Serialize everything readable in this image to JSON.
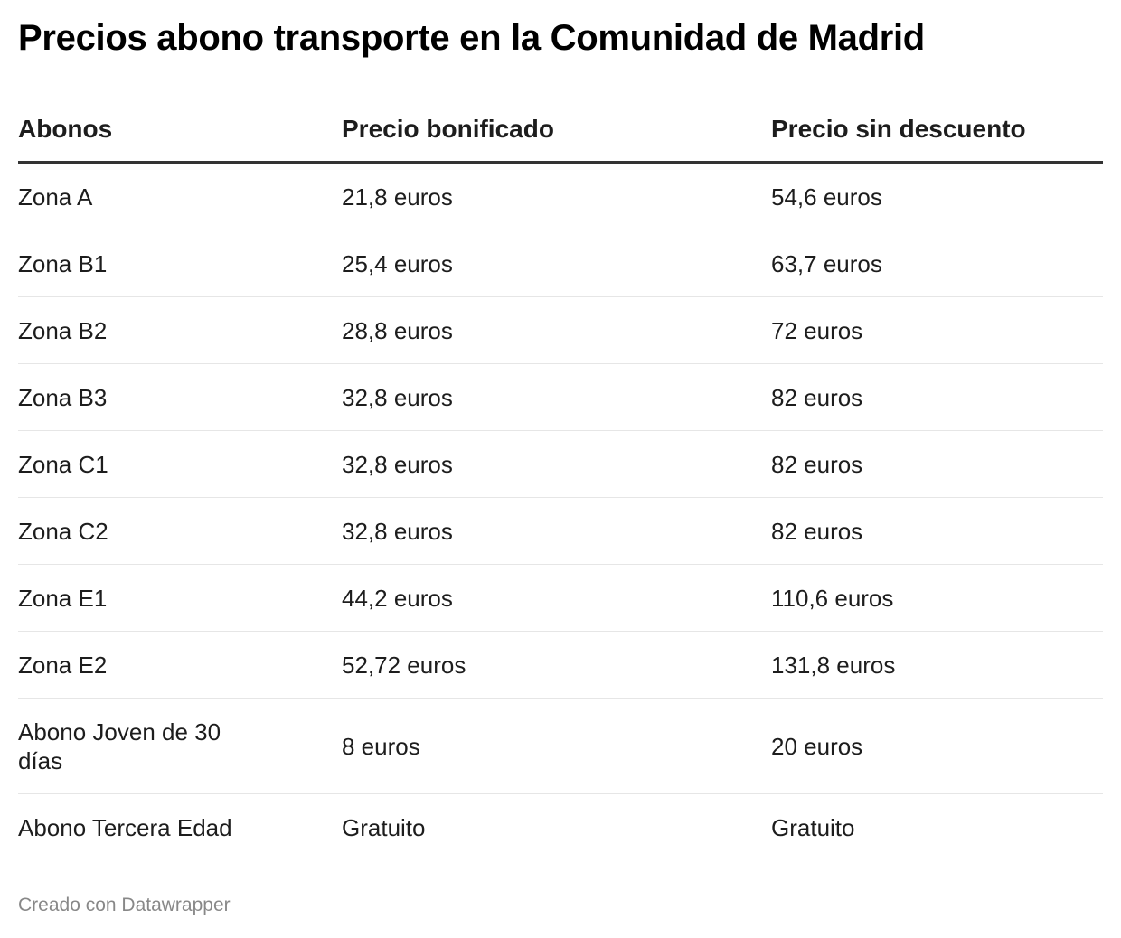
{
  "title": "Precios abono transporte en la Comunidad de Madrid",
  "table": {
    "headers": [
      "Abonos",
      "Precio bonificado",
      "Precio sin descuento"
    ],
    "rows": [
      [
        "Zona A",
        "21,8 euros",
        "54,6 euros"
      ],
      [
        "Zona B1",
        "25,4 euros",
        "63,7 euros"
      ],
      [
        "Zona B2",
        "28,8 euros",
        "72 euros"
      ],
      [
        "Zona B3",
        "32,8 euros",
        "82 euros"
      ],
      [
        "Zona C1",
        "32,8 euros",
        "82 euros"
      ],
      [
        "Zona C2",
        "32,8 euros",
        "82 euros"
      ],
      [
        "Zona E1",
        "44,2 euros",
        "110,6 euros"
      ],
      [
        "Zona E2",
        "52,72 euros",
        "131,8 euros"
      ],
      [
        "Abono Joven de 30 días",
        "8 euros",
        "20 euros"
      ],
      [
        "Abono Tercera Edad",
        "Gratuito",
        "Gratuito"
      ]
    ]
  },
  "footer": "Creado con Datawrapper",
  "colors": {
    "header_rule": "#333333",
    "row_rule": "#e6e6e6",
    "footer_text": "#888888"
  }
}
